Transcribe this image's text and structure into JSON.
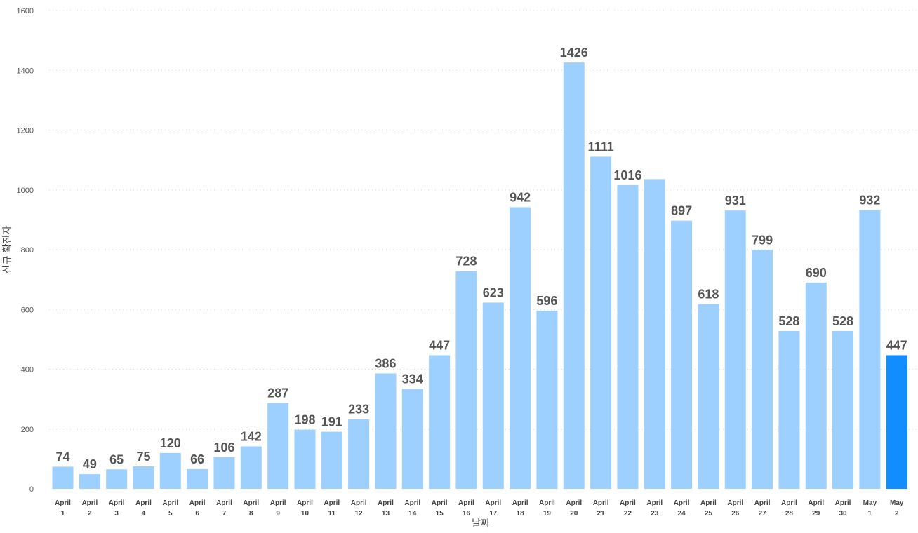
{
  "chart_data": {
    "type": "bar",
    "xlabel": "날짜",
    "ylabel": "신규 확진자",
    "ylim": [
      0,
      1600
    ],
    "yticks": [
      0,
      200,
      400,
      600,
      800,
      1000,
      1200,
      1400,
      1600
    ],
    "grid": true,
    "data_labels": true,
    "colors": {
      "bar": "#9dcfff",
      "highlight": "#118dff",
      "gridline": "#d4d4d4",
      "label": "#555555"
    },
    "highlight_category": "May 2",
    "categories": [
      "April 1",
      "April 2",
      "April 3",
      "April 4",
      "April 5",
      "April 6",
      "April 7",
      "April 8",
      "April 9",
      "April 10",
      "April 11",
      "April 12",
      "April 13",
      "April 14",
      "April 15",
      "April 16",
      "April 17",
      "April 18",
      "April 19",
      "April 20",
      "April 21",
      "April 22",
      "April 23",
      "April 24",
      "April 25",
      "April 26",
      "April 27",
      "April 28",
      "April 29",
      "April 30",
      "May 1",
      "May 2"
    ],
    "category_lines": [
      [
        "April",
        "1"
      ],
      [
        "April",
        "2"
      ],
      [
        "April",
        "3"
      ],
      [
        "April",
        "4"
      ],
      [
        "April",
        "5"
      ],
      [
        "April",
        "6"
      ],
      [
        "April",
        "7"
      ],
      [
        "April",
        "8"
      ],
      [
        "April",
        "9"
      ],
      [
        "April",
        "10"
      ],
      [
        "April",
        "11"
      ],
      [
        "April",
        "12"
      ],
      [
        "April",
        "13"
      ],
      [
        "April",
        "14"
      ],
      [
        "April",
        "15"
      ],
      [
        "April",
        "16"
      ],
      [
        "April",
        "17"
      ],
      [
        "April",
        "18"
      ],
      [
        "April",
        "19"
      ],
      [
        "April",
        "20"
      ],
      [
        "April",
        "21"
      ],
      [
        "April",
        "22"
      ],
      [
        "April",
        "23"
      ],
      [
        "April",
        "24"
      ],
      [
        "April",
        "25"
      ],
      [
        "April",
        "26"
      ],
      [
        "April",
        "27"
      ],
      [
        "April",
        "28"
      ],
      [
        "April",
        "29"
      ],
      [
        "April",
        "30"
      ],
      [
        "May",
        "1"
      ],
      [
        "May",
        "2"
      ]
    ],
    "values": [
      74,
      49,
      65,
      75,
      120,
      66,
      106,
      142,
      287,
      198,
      191,
      233,
      386,
      334,
      447,
      728,
      623,
      942,
      596,
      1426,
      1111,
      1016,
      1036,
      897,
      618,
      931,
      799,
      528,
      690,
      528,
      932,
      447
    ],
    "data_labels_shown": [
      "74",
      "49",
      "65",
      "75",
      "120",
      "66",
      "106",
      "142",
      "287",
      "198",
      "191",
      "233",
      "386",
      "334",
      "447",
      "728",
      "623",
      "942",
      "596",
      "1426",
      "1111",
      "1016",
      "",
      "897",
      "618",
      "931",
      "799",
      "528",
      "690",
      "528",
      "932",
      "447"
    ]
  }
}
